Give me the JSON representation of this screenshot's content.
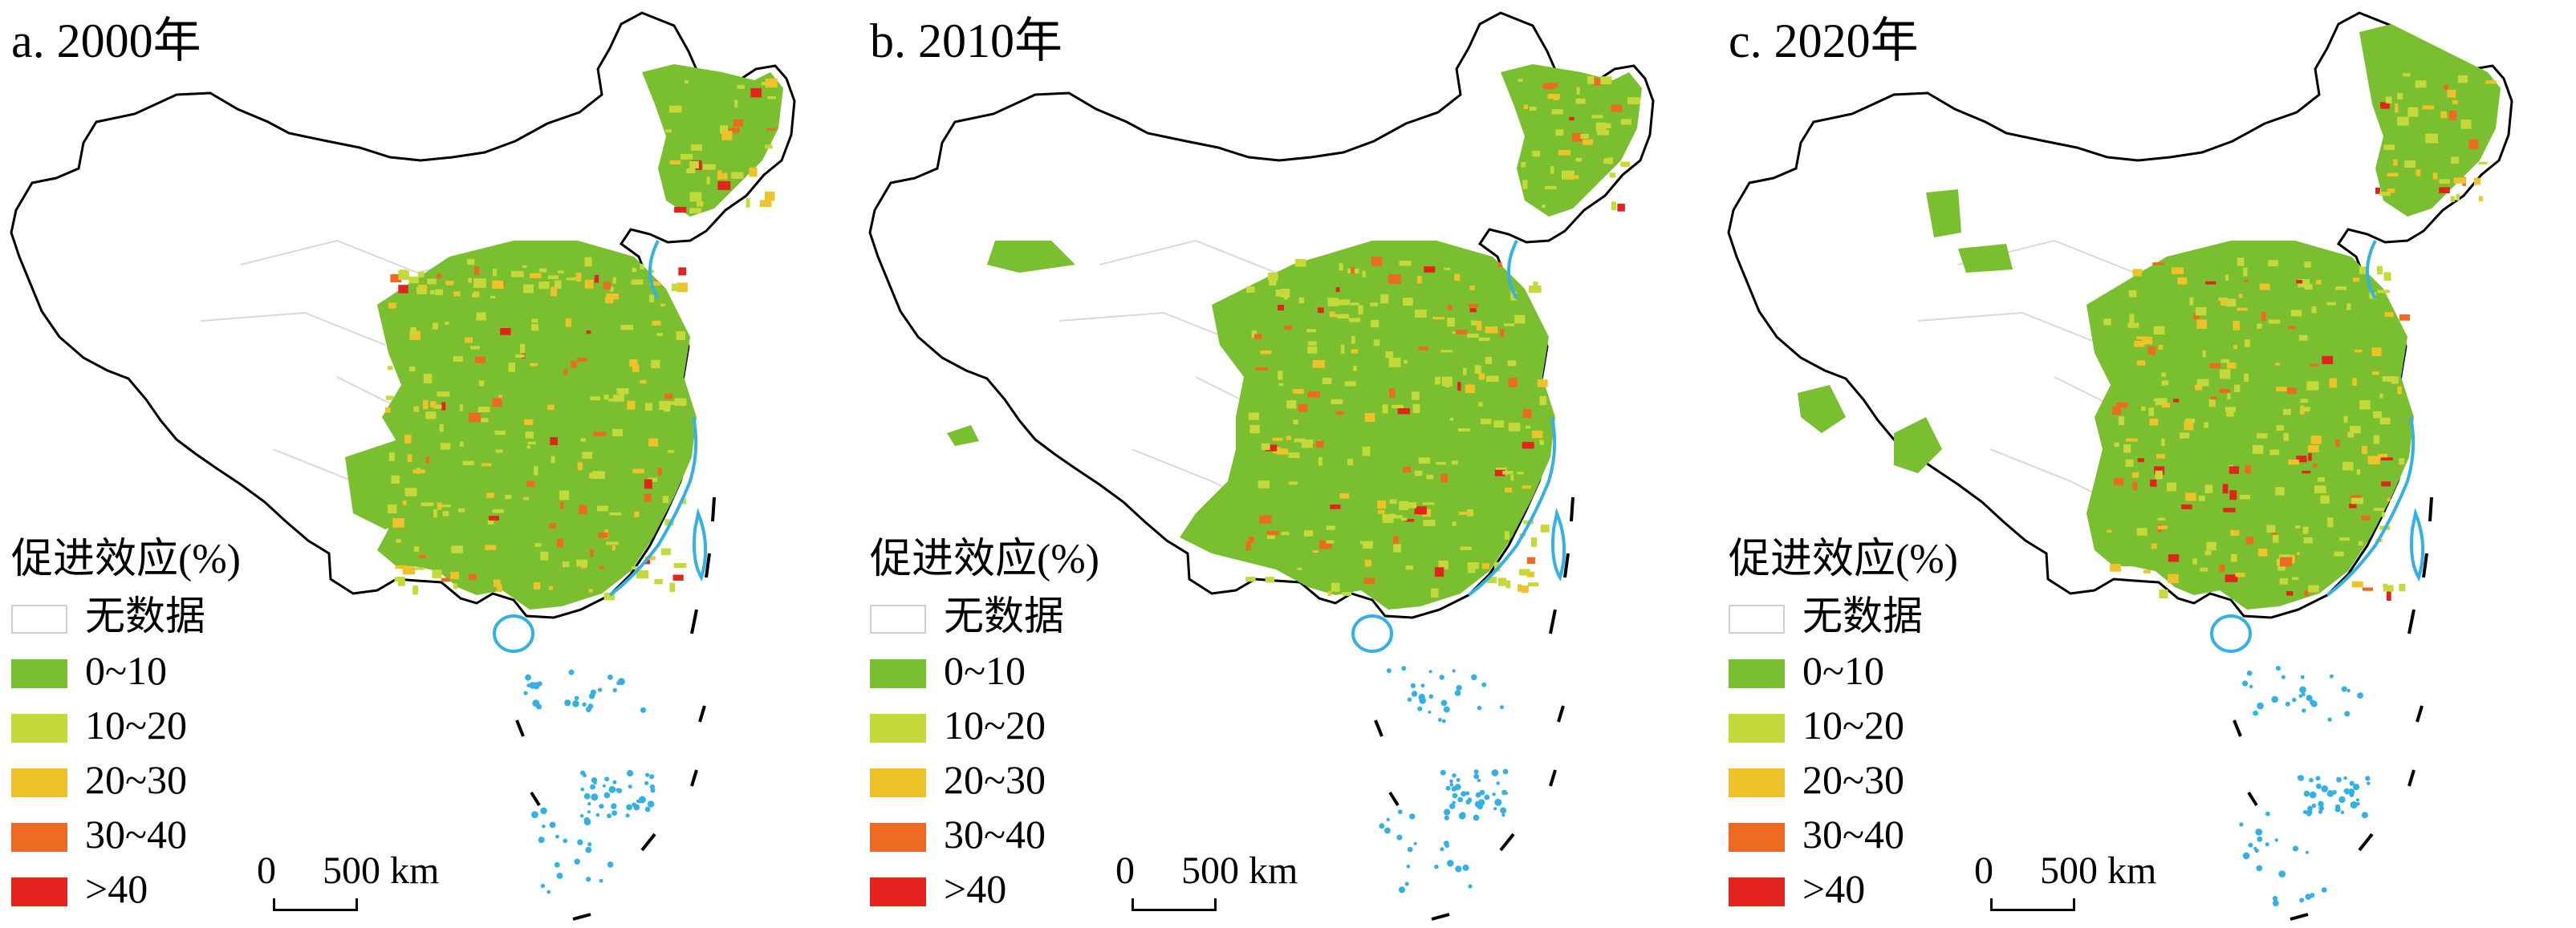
{
  "panels": [
    {
      "title": "a. 2000年"
    },
    {
      "title": "b. 2010年"
    },
    {
      "title": "c. 2020年"
    }
  ],
  "legend": {
    "title": "促进效应(%)",
    "items": [
      {
        "label": "无数据",
        "color": "#ffffff"
      },
      {
        "label": "0~10",
        "color": "#79bf2f"
      },
      {
        "label": "10~20",
        "color": "#c5d93a"
      },
      {
        "label": "20~30",
        "color": "#f0c22a"
      },
      {
        "label": "30~40",
        "color": "#ee6a22"
      },
      {
        "label": ">40",
        "color": "#e2231e"
      }
    ]
  },
  "scale": {
    "zero": "0",
    "far": "500 km"
  },
  "colors": {
    "border": "#000000",
    "province": "#d9d9d9",
    "water": "#33b1e6",
    "no_data": "#ffffff"
  }
}
